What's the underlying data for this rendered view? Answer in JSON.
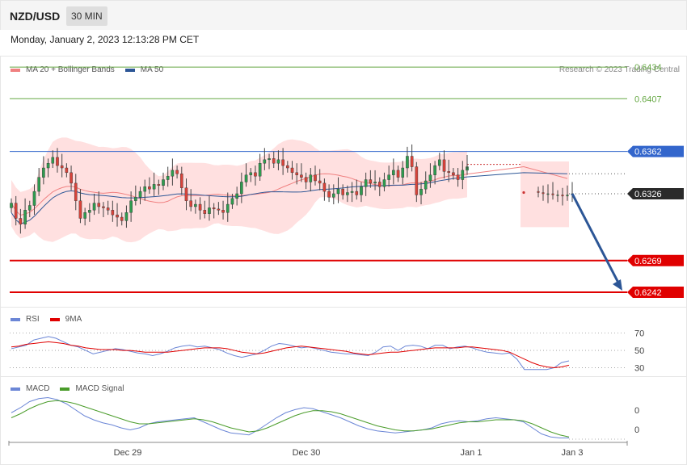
{
  "header": {
    "pair": "NZD/USD",
    "timeframe": "30 MIN",
    "datetime": "Monday, January 2, 2023 12:13:28 PM CET",
    "credit": "Research © 2023 Trading Central"
  },
  "colors": {
    "ma20": "#f08080",
    "ma50": "#2c5696",
    "band": "#ffd6d6",
    "support": "#e00000",
    "resistance_green": "#66a844",
    "pivot_blue": "#3366cc",
    "rsi": "#6b86d6",
    "rsi_ma": "#e00000",
    "macd": "#6b86d6",
    "macd_signal": "#4a9c2a",
    "arrow": "#2c5696"
  },
  "chart_data": [
    {
      "type": "candlestick",
      "title": "NZD/USD",
      "legend": [
        {
          "name": "MA 20 + Bollinger Bands",
          "color": "#f08080"
        },
        {
          "name": "MA 50",
          "color": "#2c5696"
        }
      ],
      "ylim": [
        0.6231,
        0.6443
      ],
      "levels": [
        {
          "value": 0.6434,
          "label": "0.6434",
          "kind": "resistance"
        },
        {
          "value": 0.6407,
          "label": "0.6407",
          "kind": "resistance"
        },
        {
          "value": 0.6362,
          "label": "0.6362",
          "kind": "pivot"
        },
        {
          "value": 0.6326,
          "label": "0.6326",
          "kind": "current"
        },
        {
          "value": 0.6269,
          "label": "0.6269",
          "kind": "support"
        },
        {
          "value": 0.6242,
          "label": "0.6242",
          "kind": "support"
        }
      ],
      "xticks": [
        "Dec 29",
        "Dec 30",
        "Jan 1",
        "Jan 3"
      ],
      "close": [
        0.6318,
        0.6305,
        0.63,
        0.6312,
        0.6316,
        0.6328,
        0.634,
        0.6348,
        0.6352,
        0.6357,
        0.635,
        0.6348,
        0.6344,
        0.6335,
        0.632,
        0.6305,
        0.631,
        0.6312,
        0.6318,
        0.6315,
        0.6314,
        0.6312,
        0.6308,
        0.6306,
        0.6303,
        0.631,
        0.632,
        0.6323,
        0.6328,
        0.6332,
        0.633,
        0.6334,
        0.6333,
        0.6338,
        0.6341,
        0.6346,
        0.6343,
        0.6331,
        0.632,
        0.6315,
        0.6317,
        0.6312,
        0.6309,
        0.6314,
        0.6313,
        0.6312,
        0.631,
        0.6317,
        0.6322,
        0.6326,
        0.6336,
        0.6342,
        0.6344,
        0.6341,
        0.6352,
        0.6355,
        0.6356,
        0.6352,
        0.6355,
        0.635,
        0.6348,
        0.6344,
        0.6342,
        0.634,
        0.6336,
        0.6342,
        0.6337,
        0.6335,
        0.6328,
        0.6323,
        0.6326,
        0.633,
        0.6325,
        0.6327,
        0.6328,
        0.6325,
        0.6332,
        0.6338,
        0.6335,
        0.6336,
        0.6332,
        0.6338,
        0.6342,
        0.6346,
        0.634,
        0.6348,
        0.6358,
        0.6349,
        0.6325,
        0.633,
        0.6337,
        0.6342,
        0.635,
        0.6355,
        0.6345,
        0.6344,
        0.6342,
        0.6338,
        0.6346,
        0.6349
      ],
      "recent_close": [
        0.6327,
        0.6326,
        0.6326,
        0.6325,
        0.6325,
        0.6324,
        0.6325,
        0.6326
      ]
    },
    {
      "type": "line",
      "legend": [
        {
          "name": "RSI",
          "color": "#6b86d6"
        },
        {
          "name": "9MA",
          "color": "#e00000"
        }
      ],
      "ylim": [
        24,
        78
      ],
      "yticks": [
        "70",
        "50",
        "30"
      ],
      "series": [
        {
          "name": "RSI",
          "values": [
            52,
            54,
            56,
            62,
            64,
            66,
            64,
            60,
            56,
            54,
            50,
            46,
            48,
            50,
            52,
            51,
            49,
            47,
            46,
            44,
            46,
            49,
            53,
            55,
            56,
            54,
            55,
            53,
            51,
            47,
            44,
            42,
            44,
            46,
            50,
            55,
            58,
            57,
            55,
            53,
            54,
            52,
            50,
            48,
            47,
            46,
            46,
            45,
            44,
            48,
            54,
            55,
            50,
            55,
            56,
            55,
            52,
            56,
            56,
            52,
            54,
            55,
            53,
            50,
            48,
            47,
            46,
            47,
            40,
            28,
            28,
            28,
            28,
            30,
            36,
            38
          ]
        },
        {
          "name": "9MA",
          "values": [
            54,
            55,
            57,
            58,
            59,
            60,
            59,
            58,
            56,
            55,
            53,
            52,
            51,
            51,
            51,
            50,
            50,
            49,
            48,
            48,
            48,
            48,
            49,
            50,
            51,
            52,
            53,
            53,
            53,
            52,
            50,
            48,
            47,
            46,
            47,
            49,
            51,
            53,
            54,
            55,
            54,
            53,
            52,
            51,
            50,
            49,
            47,
            46,
            45,
            46,
            47,
            48,
            48,
            49,
            50,
            51,
            52,
            53,
            53,
            53,
            53,
            54,
            54,
            53,
            52,
            51,
            50,
            48,
            44,
            40,
            36,
            33,
            31,
            30,
            31,
            33
          ]
        }
      ]
    },
    {
      "type": "line",
      "legend": [
        {
          "name": "MACD",
          "color": "#6b86d6"
        },
        {
          "name": "MACD Signal",
          "color": "#4a9c2a"
        }
      ],
      "ylim": [
        -0.0022,
        0.0022
      ],
      "yticks": [
        "0",
        "0"
      ],
      "series": [
        {
          "name": "MACD",
          "values": [
            0.0005,
            0.001,
            0.0016,
            0.0019,
            0.002,
            0.0018,
            0.0014,
            0.0008,
            0.0002,
            -0.0002,
            -0.0005,
            -0.0007,
            -0.001,
            -0.0012,
            -0.001,
            -0.0006,
            -0.0004,
            -0.0003,
            -0.0002,
            -0.0001,
            0.0,
            -0.0004,
            -0.0008,
            -0.0012,
            -0.0015,
            -0.0016,
            -0.0017,
            -0.0012,
            -0.0006,
            0.0,
            0.0005,
            0.0008,
            0.001,
            0.0009,
            0.0006,
            0.0003,
            0.0,
            -0.0004,
            -0.0008,
            -0.0011,
            -0.0013,
            -0.0014,
            -0.0015,
            -0.0014,
            -0.0013,
            -0.0012,
            -0.001,
            -0.0006,
            -0.0004,
            -0.0003,
            -0.0004,
            -0.0003,
            -0.0001,
            0.0,
            -0.0001,
            -0.0002,
            -0.0004,
            -0.001,
            -0.0016,
            -0.0019,
            -0.002,
            -0.002
          ]
        },
        {
          "name": "MACD Signal",
          "values": [
            0.0,
            0.0004,
            0.0009,
            0.0013,
            0.0016,
            0.0017,
            0.0016,
            0.0014,
            0.0011,
            0.0008,
            0.0005,
            0.0002,
            -0.0001,
            -0.0004,
            -0.0006,
            -0.0006,
            -0.0005,
            -0.0004,
            -0.0003,
            -0.0002,
            -0.0001,
            -0.0002,
            -0.0004,
            -0.0007,
            -0.001,
            -0.0012,
            -0.0014,
            -0.0013,
            -0.001,
            -0.0006,
            -0.0002,
            0.0002,
            0.0005,
            0.0007,
            0.0007,
            0.0006,
            0.0004,
            0.0001,
            -0.0002,
            -0.0005,
            -0.0008,
            -0.001,
            -0.0012,
            -0.0013,
            -0.0013,
            -0.0012,
            -0.0011,
            -0.0009,
            -0.0007,
            -0.0005,
            -0.0004,
            -0.0004,
            -0.0003,
            -0.0002,
            -0.0002,
            -0.0002,
            -0.0003,
            -0.0006,
            -0.001,
            -0.0014,
            -0.0017,
            -0.0019
          ]
        }
      ]
    }
  ]
}
